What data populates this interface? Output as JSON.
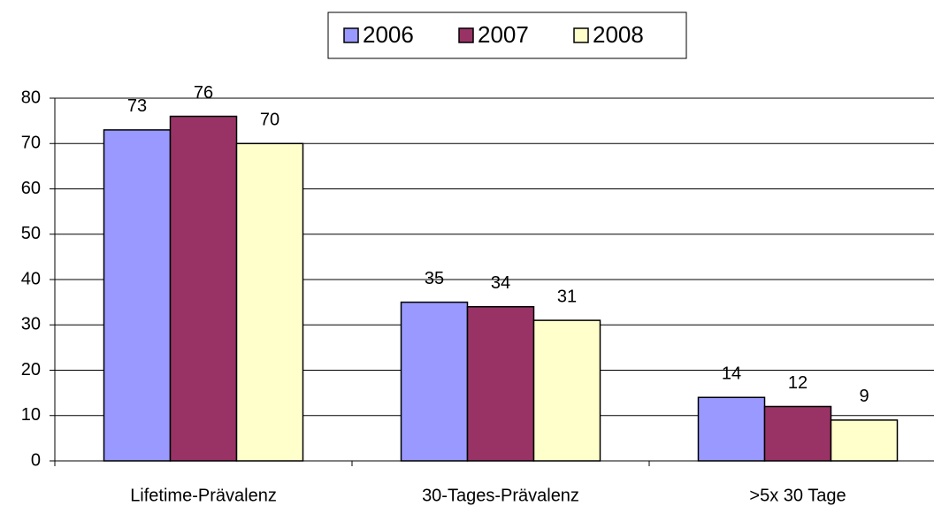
{
  "chart_data": {
    "type": "bar",
    "categories": [
      "Lifetime-Prävalenz",
      "30-Tages-Prävalenz",
      ">5x 30 Tage"
    ],
    "series": [
      {
        "name": "2006",
        "color": "#9999ff",
        "values": [
          73,
          35,
          14
        ]
      },
      {
        "name": "2007",
        "color": "#993366",
        "values": [
          76,
          34,
          12
        ]
      },
      {
        "name": "2008",
        "color": "#ffffcc",
        "values": [
          70,
          31,
          9
        ]
      }
    ],
    "ylim": [
      0,
      80
    ],
    "yticks": [
      0,
      10,
      20,
      30,
      40,
      50,
      60,
      70,
      80
    ],
    "grid": true,
    "legend": "top",
    "data_labels": true
  }
}
